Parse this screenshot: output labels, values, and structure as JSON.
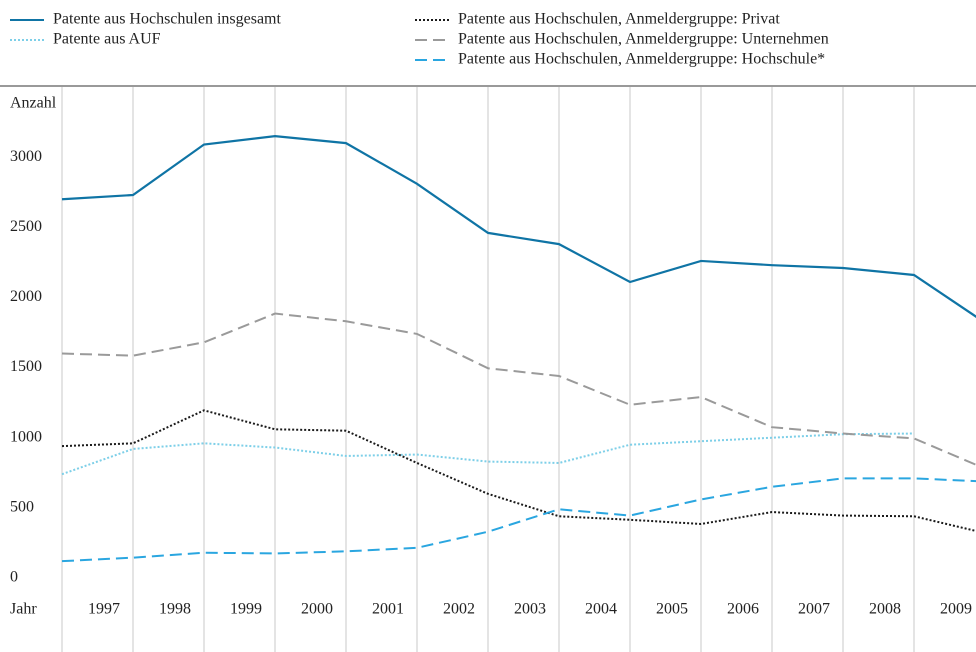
{
  "chart_data": {
    "type": "line",
    "y_label": "Anzahl",
    "x_label": "Jahr",
    "categories": [
      null,
      "1997",
      "1998",
      "1999",
      "2000",
      "2001",
      "2002",
      "2003",
      "2004",
      "2005",
      "2006",
      "2007",
      "2008",
      "2009"
    ],
    "ylim": [
      0,
      3500
    ],
    "yticks": [
      0,
      500,
      1000,
      1500,
      2000,
      2500,
      3000
    ],
    "grid": "x",
    "series": [
      {
        "name": "Patente aus Hochschulen insgesamt",
        "color": "#0f74a5",
        "dash": "solid",
        "values": [
          2700,
          2730,
          3090,
          3150,
          3100,
          2810,
          2460,
          2380,
          2110,
          2260,
          2230,
          2210,
          2160,
          1820
        ]
      },
      {
        "name": "Patente aus AUF",
        "color": "#7dcfe8",
        "dash": "dotted",
        "values": [
          740,
          920,
          960,
          930,
          870,
          880,
          830,
          820,
          950,
          975,
          1000,
          1025,
          1030,
          null
        ]
      },
      {
        "name": "Patente aus Hochschulen, Anmeldergruppe: Privat",
        "color": "#1a1a1a",
        "dash": "dotted",
        "values": [
          940,
          960,
          1195,
          1060,
          1050,
          820,
          600,
          440,
          415,
          385,
          470,
          445,
          440,
          320
        ]
      },
      {
        "name": "Patente aus Hochschulen, Anmeldergruppe: Unternehmen",
        "color": "#9a9a9a",
        "dash": "dashed",
        "values": [
          1600,
          1585,
          1680,
          1885,
          1830,
          1740,
          1495,
          1440,
          1235,
          1290,
          1075,
          1030,
          995,
          780
        ]
      },
      {
        "name": "Patente aus Hochschulen, Anmeldergruppe: Hochschule*",
        "color": "#2aa6e0",
        "dash": "dashed",
        "values": [
          120,
          145,
          180,
          175,
          190,
          215,
          330,
          490,
          445,
          560,
          650,
          710,
          710,
          688
        ]
      }
    ]
  }
}
